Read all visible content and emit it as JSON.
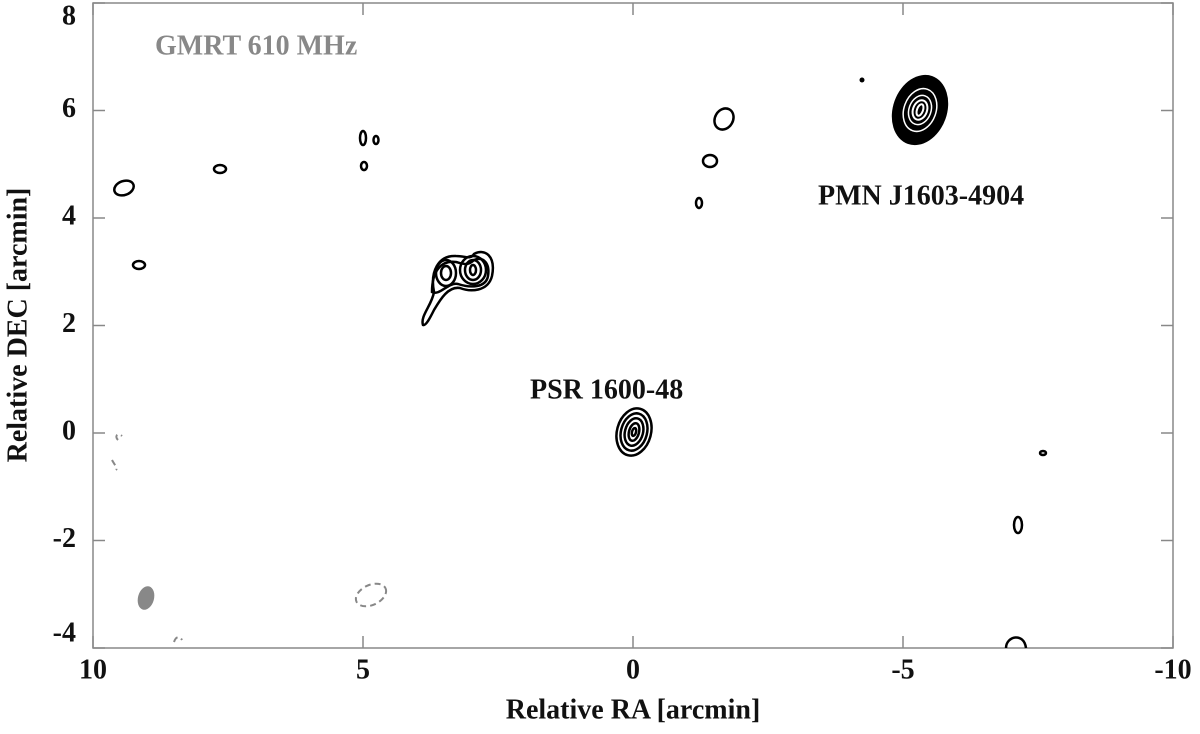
{
  "chart_data": {
    "type": "contour",
    "title": "GMRT 610 MHz",
    "x_label": "Relative RA [arcmin]",
    "y_label": "Relative DEC [arcmin]",
    "annotations": [
      "PSR 1600-48",
      "PMN J1603-4904"
    ],
    "xlim": [
      10,
      -10
    ],
    "xticks": [
      10,
      5,
      0,
      -5,
      -10
    ],
    "ylim": [
      -4,
      8
    ],
    "yticks": [
      -4,
      -2,
      0,
      2,
      4,
      6,
      8
    ]
  }
}
